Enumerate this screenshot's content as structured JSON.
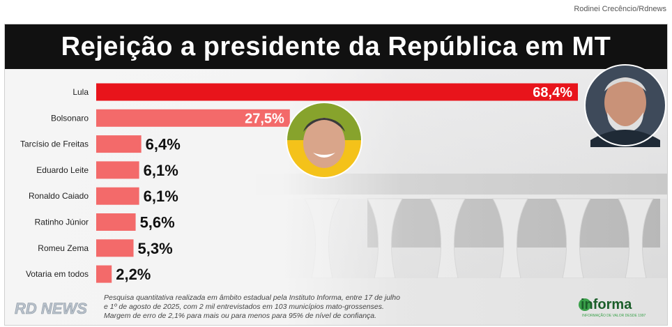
{
  "header": {
    "credit": "Rodinei Crecêncio/Rdnews",
    "title": "Rejeição a presidente da República em MT"
  },
  "chart_data": {
    "type": "bar",
    "orientation": "horizontal",
    "title": "Rejeição a presidente da República em MT",
    "categories": [
      "Lula",
      "Bolsonaro",
      "Tarcísio de Freitas",
      "Eduardo Leite",
      "Ronaldo Caiado",
      "Ratinho Júnior",
      "Romeu Zema",
      "Votaria em todos"
    ],
    "values": [
      68.4,
      27.5,
      6.4,
      6.1,
      6.1,
      5.6,
      5.3,
      2.2
    ],
    "value_labels": [
      "68,4%",
      "27,5%",
      "6,4%",
      "6,1%",
      "6,1%",
      "5,6%",
      "5,3%",
      "2,2%"
    ],
    "bar_colors": [
      "#e8141b",
      "#f36a6a",
      "#f36a6a",
      "#f36a6a",
      "#f36a6a",
      "#f36a6a",
      "#f36a6a",
      "#f36a6a"
    ],
    "xlim": [
      0,
      70
    ],
    "grid": false,
    "legend": "none"
  },
  "footnote": {
    "line1": "Pesquisa quantitativa realizada em âmbito estadual pela Instituto Informa, entre 17 de julho",
    "line2": "e 1º de agosto de 2025, com 2 mil entrevistados em 103 municípios mato-grossenses.",
    "line3": "Margem de erro de 2,1% para mais ou para menos para 95% de nível de confiança."
  },
  "logos": {
    "rdnews": "RD NEWS",
    "informa": "informa",
    "informa_tagline": "INFORMAÇÃO DE VALOR DESDE 1997"
  },
  "colors": {
    "title_bg": "#111111",
    "highlight_bar": "#e8141b",
    "bar": "#f36a6a",
    "informa_green": "#3aa14a"
  }
}
